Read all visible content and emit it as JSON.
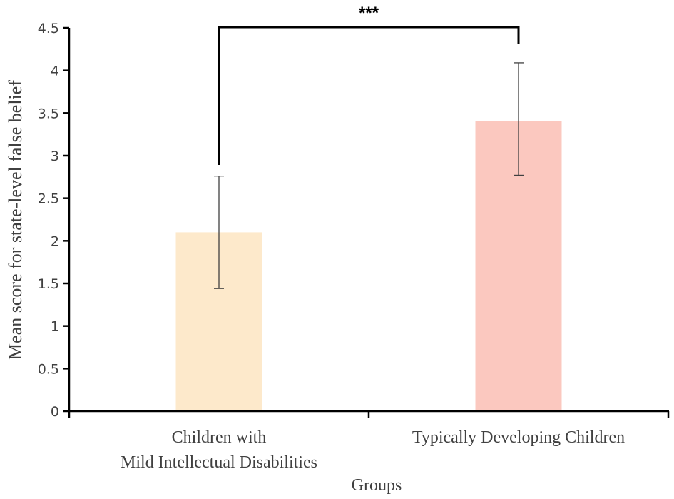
{
  "chart_data": {
    "type": "bar",
    "title": "",
    "xlabel": "Groups",
    "ylabel": "Mean score for state-level  false belief",
    "ylim": [
      0,
      4.5
    ],
    "yticks": [
      "0",
      "0.5",
      "1",
      "1.5",
      "2",
      "2.5",
      "3",
      "3.5",
      "4",
      "4.5"
    ],
    "categories": [
      [
        "Children with",
        "Mild Intellectual Disabilities"
      ],
      [
        "Typically Developing Children"
      ]
    ],
    "values": [
      2.1,
      3.41
    ],
    "error_low": [
      1.44,
      2.77
    ],
    "error_high": [
      2.76,
      4.09
    ],
    "colors": [
      "#FDE9CB",
      "#FBC8BF"
    ],
    "grid": false,
    "annotation": "***"
  }
}
